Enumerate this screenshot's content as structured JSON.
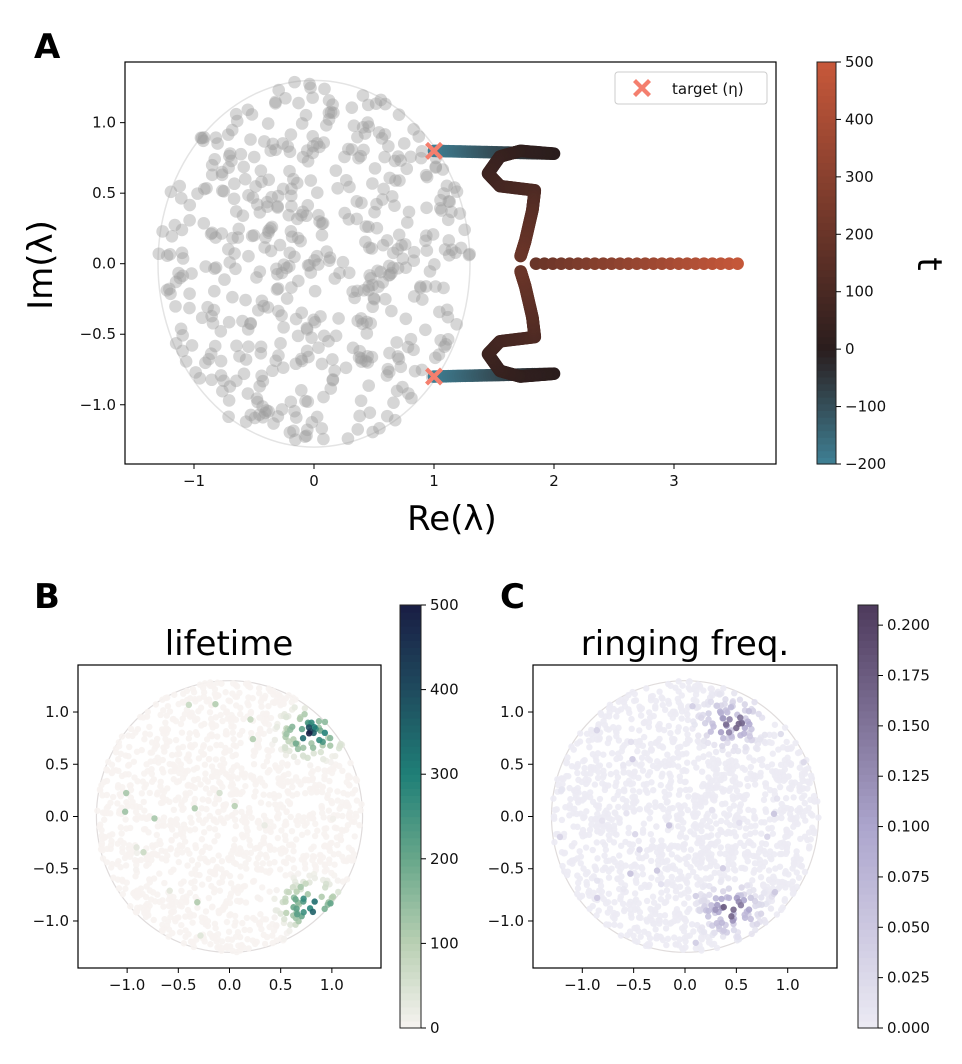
{
  "chart_data": [
    {
      "panel": "A",
      "type": "scatter",
      "xlabel": "Re(λ)",
      "ylabel": "Im(λ)",
      "xlim": [
        -1.575,
        3.85
      ],
      "ylim": [
        -1.42,
        1.43
      ],
      "xticks": [
        -1,
        0,
        1,
        2,
        3
      ],
      "xtick_labels": [
        "−1",
        "0",
        "1",
        "2",
        "3"
      ],
      "yticks": [
        1.0,
        0.5,
        0.0,
        -0.5,
        -1.0
      ],
      "ytick_labels": [
        "1.0",
        "0.5",
        "0.0",
        "−0.5",
        "−1.0"
      ],
      "unit_circle_radius": 1.3,
      "background_cloud": {
        "count": 500,
        "radius": 1.3,
        "color": "#9e9e9e",
        "seed": 7
      },
      "targets": [
        [
          1.0,
          0.8
        ],
        [
          1.0,
          -0.8
        ]
      ],
      "target_color": "#f47f6e",
      "legend": {
        "label": "target (η)",
        "placement": "top-right"
      },
      "trajectory_upper": [
        [
          1.0,
          0.8,
          -200
        ],
        [
          1.5,
          0.79,
          -100
        ],
        [
          2.0,
          0.78,
          0
        ],
        [
          1.72,
          0.8,
          20
        ],
        [
          1.55,
          0.76,
          40
        ],
        [
          1.45,
          0.64,
          60
        ],
        [
          1.55,
          0.55,
          80
        ],
        [
          1.84,
          0.52,
          110
        ],
        [
          1.82,
          0.38,
          140
        ],
        [
          1.76,
          0.16,
          180
        ],
        [
          1.72,
          0.05,
          200
        ]
      ],
      "trajectory_horizontal": [
        [
          1.85,
          0.0,
          200
        ],
        [
          3.6,
          0.0,
          500
        ]
      ],
      "colorbar": {
        "label": "t",
        "min": -200,
        "max": 500,
        "ticks": [
          500,
          400,
          300,
          200,
          100,
          0,
          -100,
          -200
        ],
        "tick_labels": [
          "500",
          "400",
          "300",
          "200",
          "100",
          "0",
          "−100",
          "−200"
        ],
        "stops": [
          [
            -200,
            "#3f8196"
          ],
          [
            0,
            "#2a1d1d"
          ],
          [
            500,
            "#c8583a"
          ]
        ]
      }
    },
    {
      "panel": "B",
      "type": "scatter",
      "title": "lifetime",
      "xlim": [
        -1.48,
        1.48
      ],
      "ylim": [
        -1.45,
        1.45
      ],
      "xticks": [
        -1.0,
        -0.5,
        0.0,
        0.5,
        1.0
      ],
      "xtick_labels": [
        "−1.0",
        "−0.5",
        "0.0",
        "0.5",
        "1.0"
      ],
      "yticks": [
        1.0,
        0.5,
        0.0,
        -0.5,
        -1.0
      ],
      "ytick_labels": [
        "1.0",
        "0.5",
        "0.0",
        "−0.5",
        "−1.0"
      ],
      "points": {
        "count": 1400,
        "radius": 1.3,
        "seed": 11,
        "hot_centers": [
          [
            0.8,
            0.8
          ],
          [
            0.8,
            -0.85
          ]
        ],
        "max_value": 500
      },
      "colorbar": {
        "min": 0,
        "max": 500,
        "ticks": [
          500,
          400,
          300,
          200,
          100,
          0
        ],
        "tick_labels": [
          "500",
          "400",
          "300",
          "200",
          "100",
          "0"
        ],
        "stops": [
          [
            0,
            "#f7f3f1"
          ],
          [
            100,
            "#b9d0b3"
          ],
          [
            200,
            "#68a78a"
          ],
          [
            300,
            "#1f7f77"
          ],
          [
            400,
            "#1f4b5e"
          ],
          [
            500,
            "#191d44"
          ]
        ]
      }
    },
    {
      "panel": "C",
      "type": "scatter",
      "title": "ringing freq.",
      "xlim": [
        -1.48,
        1.48
      ],
      "ylim": [
        -1.45,
        1.45
      ],
      "xticks": [
        -1.0,
        -0.5,
        0.0,
        0.5,
        1.0
      ],
      "xtick_labels": [
        "−1.0",
        "−0.5",
        "0.0",
        "0.5",
        "1.0"
      ],
      "yticks": [
        1.0,
        0.5,
        0.0,
        -0.5,
        -1.0
      ],
      "ytick_labels": [
        "1.0",
        "0.5",
        "0.0",
        "−0.5",
        "−1.0"
      ],
      "points": {
        "count": 1600,
        "radius": 1.3,
        "seed": 23,
        "hot_centers": [
          [
            0.45,
            0.9
          ],
          [
            0.45,
            -0.9
          ]
        ],
        "max_value": 0.21
      },
      "colorbar": {
        "min": 0,
        "max": 0.21,
        "ticks": [
          0.2,
          0.175,
          0.15,
          0.125,
          0.1,
          0.075,
          0.05,
          0.025,
          0.0
        ],
        "tick_labels": [
          "0.200",
          "0.175",
          "0.150",
          "0.125",
          "0.100",
          "0.075",
          "0.050",
          "0.025",
          "0.000"
        ],
        "stops": [
          [
            0,
            "#ecebf4"
          ],
          [
            0.1,
            "#aca5cd"
          ],
          [
            0.21,
            "#4d3a5c"
          ]
        ]
      }
    }
  ],
  "labels": {
    "panel_a": "A",
    "panel_b": "B",
    "panel_c": "C",
    "re_label": "Re(λ)",
    "im_label": "Im(λ)",
    "t_label": "t",
    "title_b": "lifetime",
    "title_c": "ringing freq.",
    "legend": "target (η)"
  }
}
